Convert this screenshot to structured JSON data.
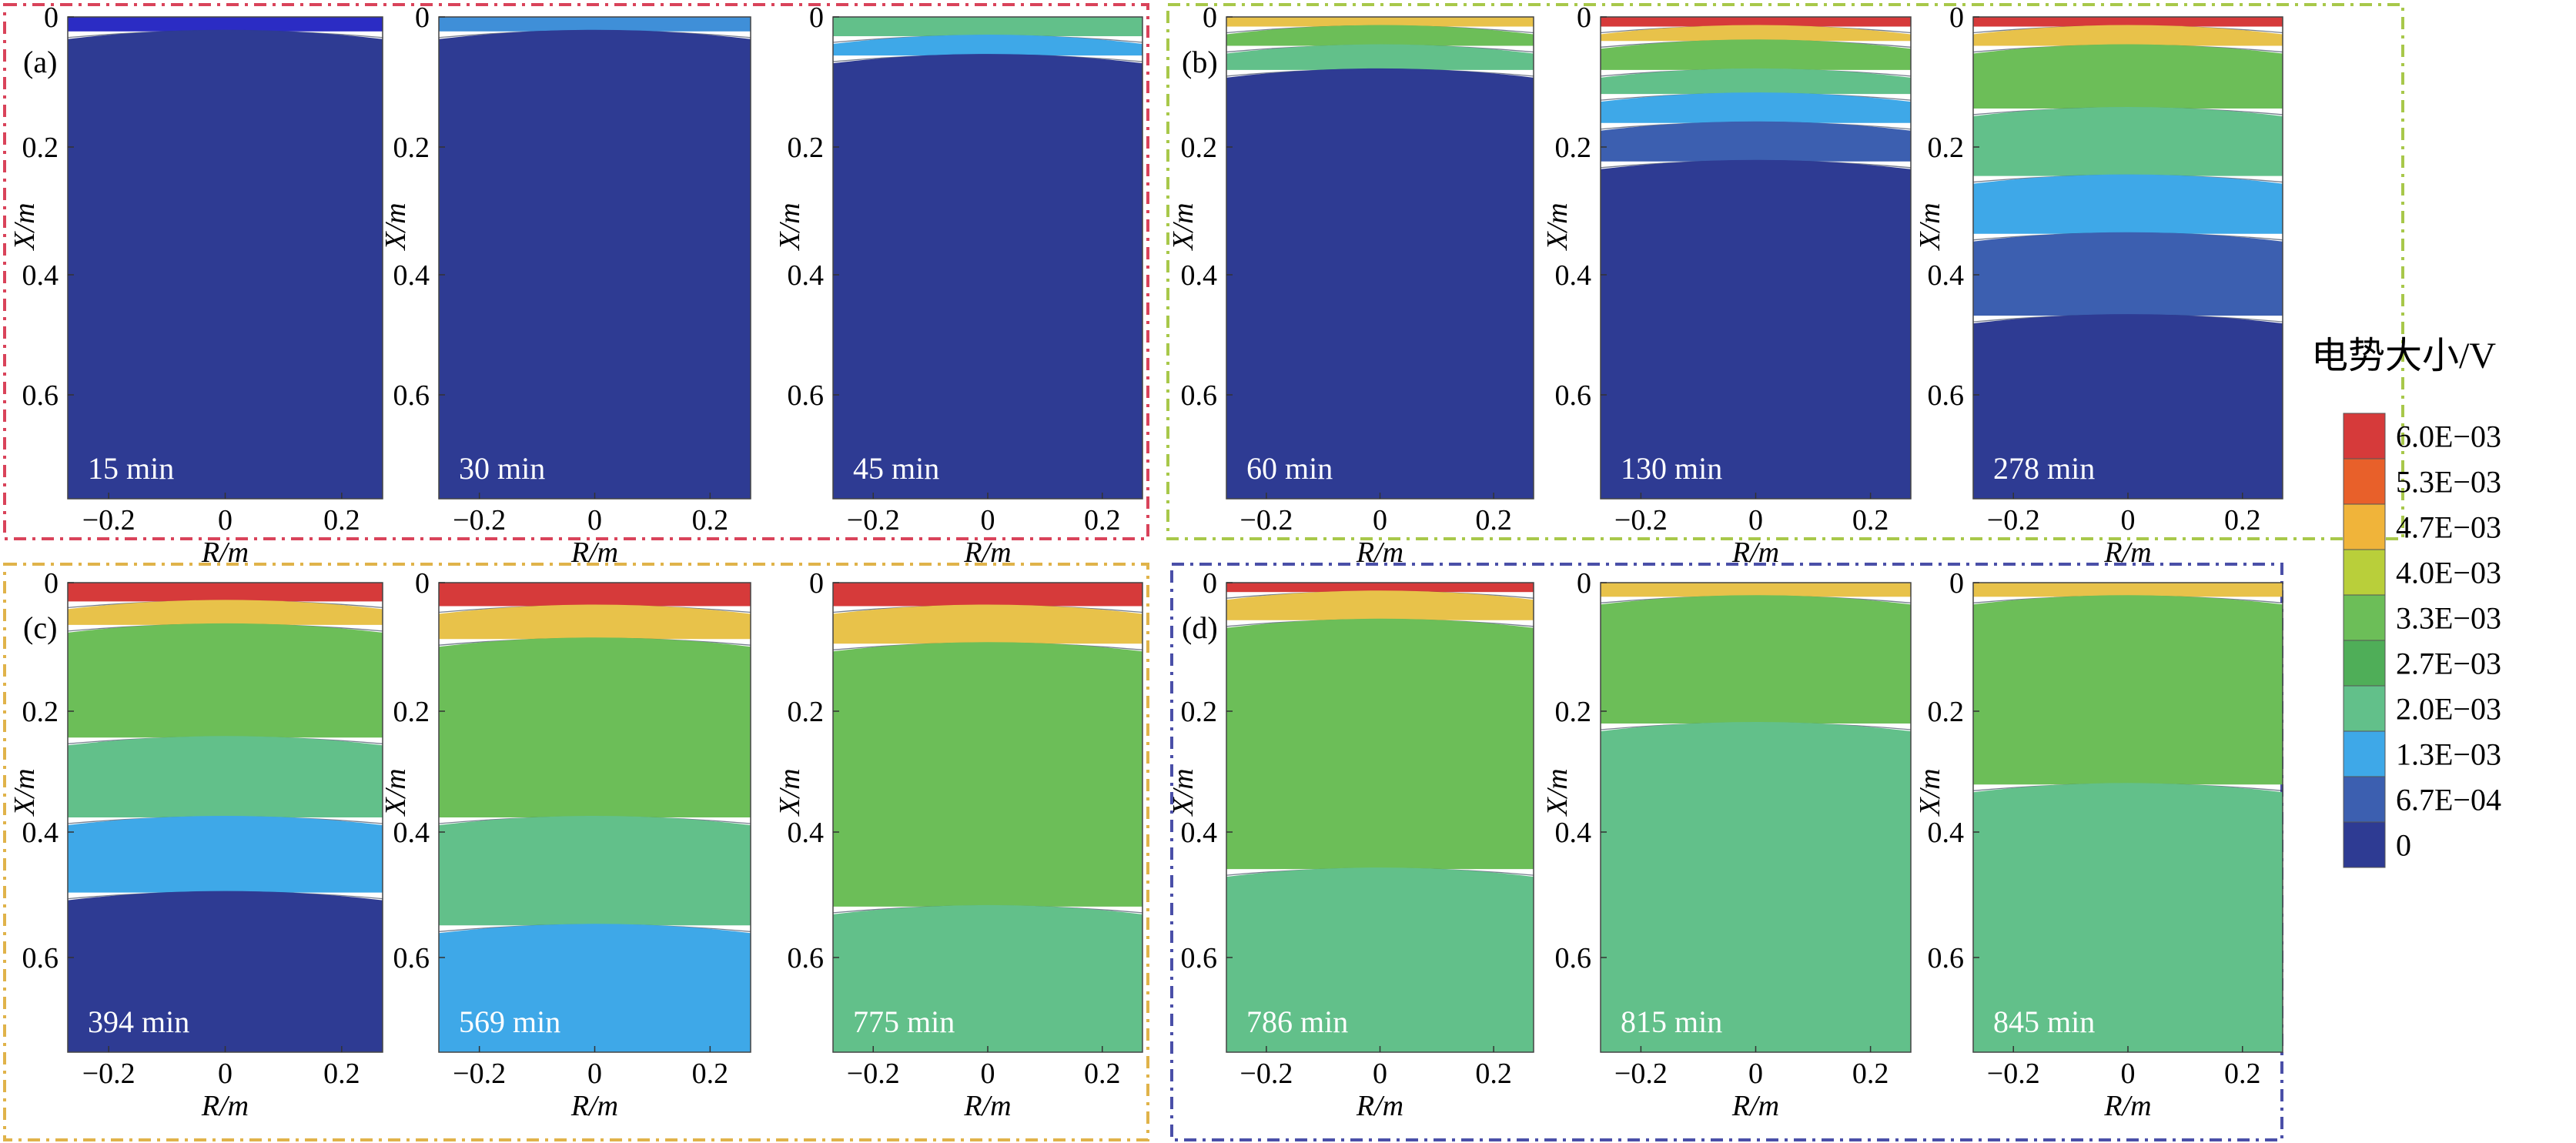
{
  "groups": [
    {
      "label": "(a)",
      "border_color": "#d9435a",
      "panels": [
        {
          "time": "15 min",
          "fills": [
            [
              "#2b2cc4",
              0.03
            ],
            [
              "#2e3b93",
              1.0
            ]
          ]
        },
        {
          "time": "30 min",
          "fills": [
            [
              "#3f8fd8",
              0.03
            ],
            [
              "#2e3b93",
              1.0
            ]
          ]
        },
        {
          "time": "45 min",
          "fills": [
            [
              "#62c08a",
              0.04
            ],
            [
              "#3ea8e8",
              0.08
            ],
            [
              "#2e3b93",
              1.0
            ]
          ]
        }
      ]
    },
    {
      "label": "(b)",
      "border_color": "#a8c84a",
      "panels": [
        {
          "time": "60 min",
          "fills": [
            [
              "#e8c24a",
              0.02
            ],
            [
              "#6cbe58",
              0.06
            ],
            [
              "#62c08a",
              0.11
            ],
            [
              "#2e3b93",
              1.0
            ]
          ]
        },
        {
          "time": "130 min",
          "fills": [
            [
              "#d63a3a",
              0.02
            ],
            [
              "#e8c24a",
              0.05
            ],
            [
              "#6cbe58",
              0.11
            ],
            [
              "#62c08a",
              0.16
            ],
            [
              "#3ea8e8",
              0.22
            ],
            [
              "#3c5fb0",
              0.3
            ],
            [
              "#2e3b93",
              1.0
            ]
          ]
        },
        {
          "time": "278 min",
          "fills": [
            [
              "#d63a3a",
              0.02
            ],
            [
              "#e8c24a",
              0.06
            ],
            [
              "#6cbe58",
              0.19
            ],
            [
              "#62c08a",
              0.33
            ],
            [
              "#3ea8e8",
              0.45
            ],
            [
              "#3c5fb0",
              0.62
            ],
            [
              "#2e3b93",
              1.0
            ]
          ]
        }
      ]
    },
    {
      "label": "(c)",
      "border_color": "#e0b34a",
      "panels": [
        {
          "time": "394 min",
          "fills": [
            [
              "#d63a3a",
              0.04
            ],
            [
              "#e8c24a",
              0.09
            ],
            [
              "#6cbe58",
              0.33
            ],
            [
              "#62c08a",
              0.5
            ],
            [
              "#3ea8e8",
              0.66
            ],
            [
              "#2e3b93",
              1.0
            ]
          ]
        },
        {
          "time": "569 min",
          "fills": [
            [
              "#d63a3a",
              0.05
            ],
            [
              "#e8c24a",
              0.12
            ],
            [
              "#6cbe58",
              0.5
            ],
            [
              "#62c08a",
              0.73
            ],
            [
              "#3ea8e8",
              1.0
            ]
          ]
        },
        {
          "time": "775 min",
          "fills": [
            [
              "#d63a3a",
              0.05
            ],
            [
              "#e8c24a",
              0.13
            ],
            [
              "#6cbe58",
              0.69
            ],
            [
              "#62c08a",
              1.0
            ]
          ]
        }
      ]
    },
    {
      "label": "(d)",
      "border_color": "#4a4fa8",
      "panels": [
        {
          "time": "786 min",
          "fills": [
            [
              "#d63a3a",
              0.02
            ],
            [
              "#e8c24a",
              0.08
            ],
            [
              "#6cbe58",
              0.61
            ],
            [
              "#62c08a",
              1.0
            ]
          ]
        },
        {
          "time": "815 min",
          "fills": [
            [
              "#e8c24a",
              0.03
            ],
            [
              "#6cbe58",
              0.3
            ],
            [
              "#62c08a",
              1.0
            ]
          ]
        },
        {
          "time": "845 min",
          "fills": [
            [
              "#e8c24a",
              0.03
            ],
            [
              "#6cbe58",
              0.43
            ],
            [
              "#62c08a",
              1.0
            ]
          ]
        }
      ]
    }
  ],
  "axes": {
    "x_label": "R/m",
    "y_label": "X/m",
    "x_ticks": [
      "−0.2",
      "0",
      "0.2"
    ],
    "y_ticks": [
      "0",
      "0.2",
      "0.4",
      "0.6"
    ]
  },
  "colorbar": {
    "title": "电势大小/V",
    "labels": [
      "6.0E−03",
      "5.3E−03",
      "4.7E−03",
      "4.0E−03",
      "3.3E−03",
      "2.7E−03",
      "2.0E−03",
      "1.3E−03",
      "6.7E−04",
      "0"
    ],
    "colors": [
      "#d63a3a",
      "#e8602a",
      "#f0b43a",
      "#b9cf3a",
      "#6cbe58",
      "#4fae58",
      "#62c08a",
      "#3ea8e8",
      "#3c5fb0",
      "#2e3b93"
    ]
  }
}
